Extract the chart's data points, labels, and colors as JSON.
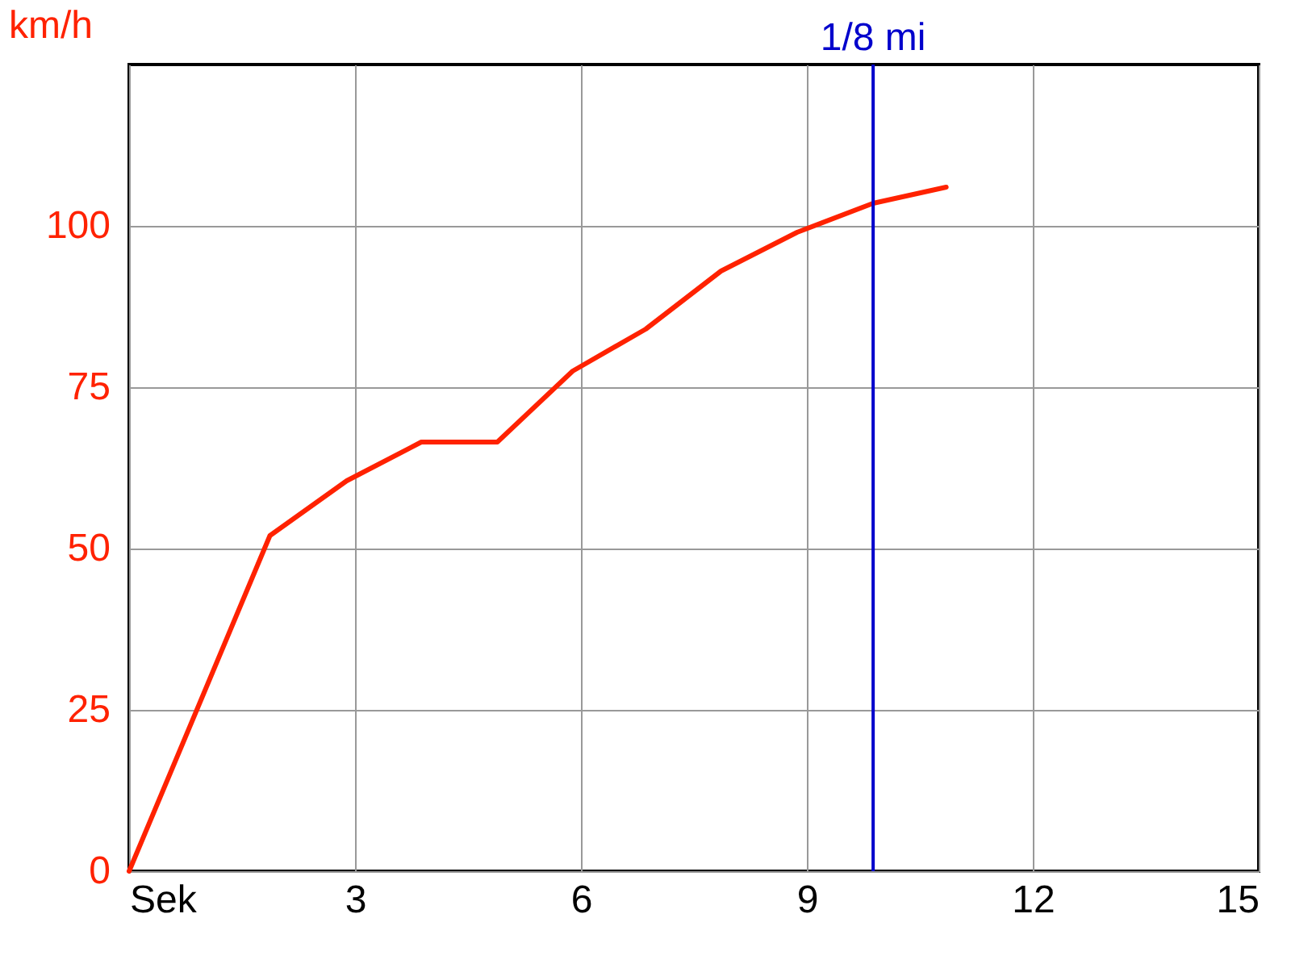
{
  "chart_data": {
    "type": "line",
    "ylabel": "km/h",
    "x": [
      0,
      1.87,
      2.89,
      3.88,
      4.89,
      5.89,
      6.86,
      7.86,
      8.87,
      9.88,
      10.85
    ],
    "series": [
      {
        "color": "#ff2200",
        "values": [
          0,
          52,
          60.5,
          66.5,
          66.5,
          77.5,
          84,
          93,
          99,
          103.5,
          106
        ]
      }
    ],
    "xlim": [
      0,
      15
    ],
    "xticks": [
      {
        "value": 0,
        "label": "Sek"
      },
      3,
      6,
      9,
      12,
      15
    ],
    "ylim": [
      0,
      125
    ],
    "yticks": [
      0,
      25,
      50,
      75,
      100
    ],
    "ref_lines": [
      {
        "axis": "x",
        "value": 9.88,
        "label": "1/8 mi",
        "color": "#0000cc"
      }
    ],
    "grid": true,
    "marker": "none",
    "line_style": "solid"
  }
}
